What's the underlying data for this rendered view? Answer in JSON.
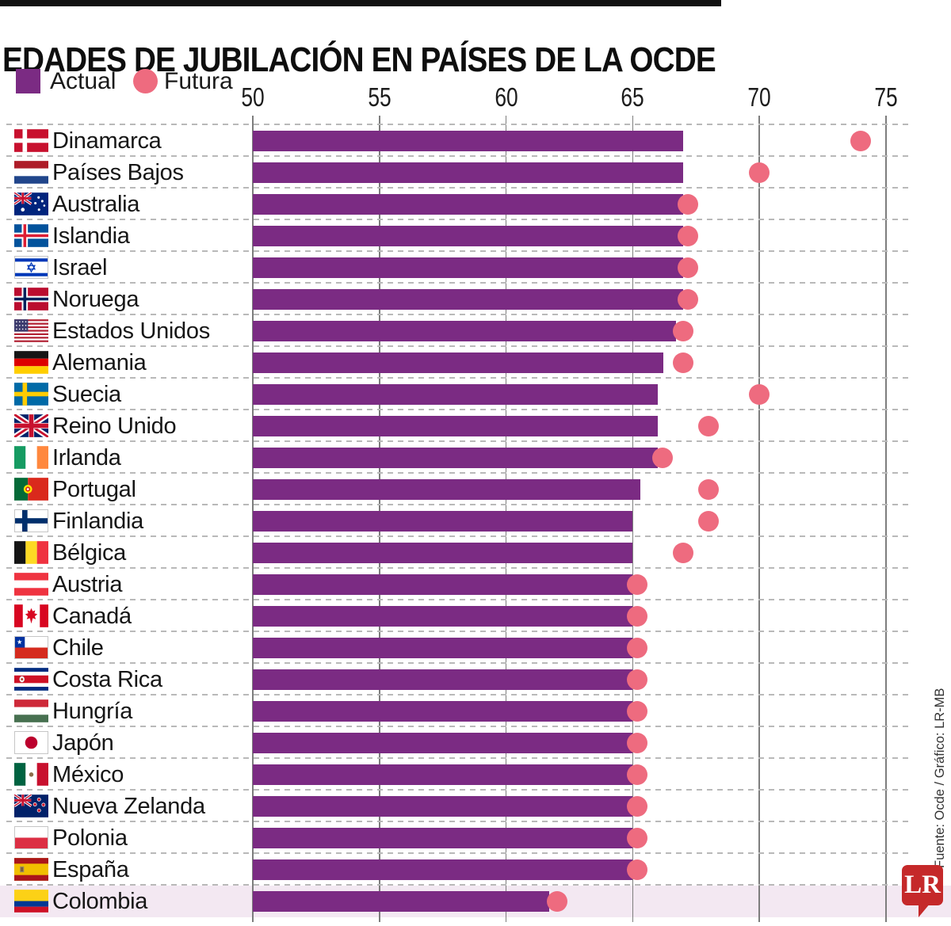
{
  "header": {
    "title": "EDADES DE JUBILACIÓN EN PAÍSES DE LA OCDE"
  },
  "legend": {
    "actual_label": "Actual",
    "futura_label": "Futura"
  },
  "footer": {
    "source": "Fuente: Ocde / Gráfico: LR-MB",
    "logo_text": "LR"
  },
  "colors": {
    "actual_bar": "#7B2B83",
    "futura_dot": "#EE6B7F",
    "highlight_row": "#F3E8F2",
    "grid_line": "#7d7d7d",
    "logo_red": "#C5292A"
  },
  "chart_data": {
    "type": "bar",
    "orientation": "horizontal",
    "title": "EDADES DE JUBILACIÓN EN PAÍSES DE LA OCDE",
    "xlim": [
      50,
      75
    ],
    "x_ticks": [
      50,
      55,
      60,
      65,
      70,
      75
    ],
    "grid": true,
    "legend_position": "top-left",
    "series": [
      {
        "name": "Actual",
        "style": "bar",
        "color": "#7B2B83"
      },
      {
        "name": "Futura",
        "style": "dot",
        "color": "#EE6B7F"
      }
    ],
    "rows": [
      {
        "country": "Dinamarca",
        "flag": "denmark",
        "actual": 67,
        "futura": 74
      },
      {
        "country": "Países Bajos",
        "flag": "netherlands",
        "actual": 67,
        "futura": 70
      },
      {
        "country": "Australia",
        "flag": "australia",
        "actual": 67,
        "futura": 67
      },
      {
        "country": "Islandia",
        "flag": "iceland",
        "actual": 67,
        "futura": 67
      },
      {
        "country": "Israel",
        "flag": "israel",
        "actual": 67,
        "futura": 67
      },
      {
        "country": "Noruega",
        "flag": "norway",
        "actual": 67,
        "futura": 67
      },
      {
        "country": "Estados Unidos",
        "flag": "usa",
        "actual": 66.7,
        "futura": 67
      },
      {
        "country": "Alemania",
        "flag": "germany",
        "actual": 66.2,
        "futura": 67
      },
      {
        "country": "Suecia",
        "flag": "sweden",
        "actual": 66,
        "futura": 70
      },
      {
        "country": "Reino Unido",
        "flag": "uk",
        "actual": 66,
        "futura": 68
      },
      {
        "country": "Irlanda",
        "flag": "ireland",
        "actual": 66,
        "futura": 66
      },
      {
        "country": "Portugal",
        "flag": "portugal",
        "actual": 65.3,
        "futura": 68
      },
      {
        "country": "Finlandia",
        "flag": "finland",
        "actual": 65,
        "futura": 68
      },
      {
        "country": "Bélgica",
        "flag": "belgium",
        "actual": 65,
        "futura": 67
      },
      {
        "country": "Austria",
        "flag": "austria",
        "actual": 65,
        "futura": 65
      },
      {
        "country": "Canadá",
        "flag": "canada",
        "actual": 65,
        "futura": 65
      },
      {
        "country": "Chile",
        "flag": "chile",
        "actual": 65,
        "futura": 65
      },
      {
        "country": "Costa Rica",
        "flag": "costa_rica",
        "actual": 65,
        "futura": 65
      },
      {
        "country": "Hungría",
        "flag": "hungary",
        "actual": 65,
        "futura": 65
      },
      {
        "country": "Japón",
        "flag": "japan",
        "actual": 65,
        "futura": 65
      },
      {
        "country": "México",
        "flag": "mexico",
        "actual": 65,
        "futura": 65
      },
      {
        "country": "Nueva Zelanda",
        "flag": "new_zealand",
        "actual": 65,
        "futura": 65
      },
      {
        "country": "Polonia",
        "flag": "poland",
        "actual": 65,
        "futura": 65
      },
      {
        "country": "España",
        "flag": "spain",
        "actual": 65,
        "futura": 65
      },
      {
        "country": "Colombia",
        "flag": "colombia",
        "actual": 61.7,
        "futura": 62,
        "highlight": true
      }
    ]
  }
}
